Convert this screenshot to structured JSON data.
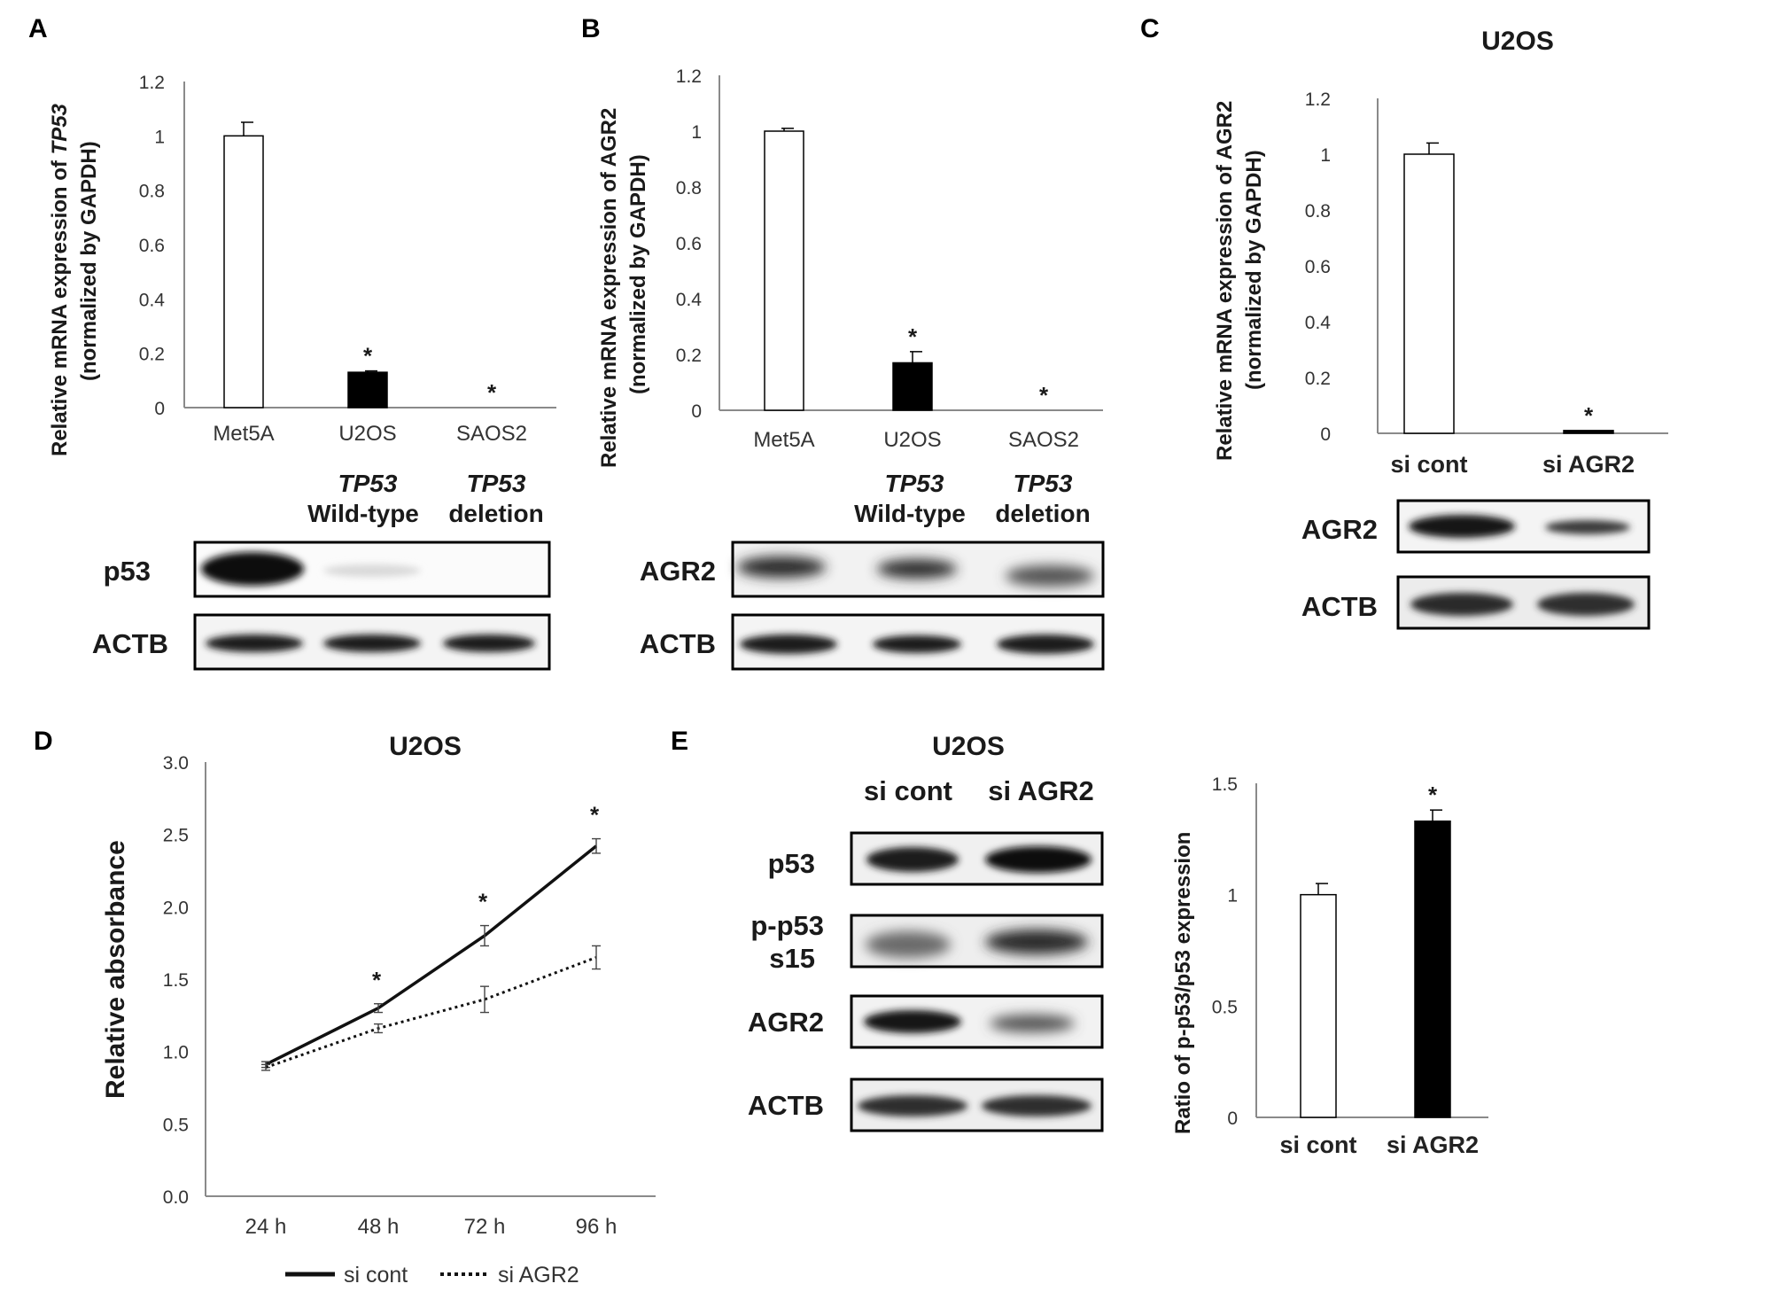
{
  "panels": {
    "A": {
      "label": "A",
      "ylabel_pre": "Relative mRNA expression of ",
      "ylabel_gene": "TP53",
      "ylabel_line2": "(normalized by GAPDH)",
      "genotype_gene": "TP53",
      "genotype_u2os": "Wild-type",
      "genotype_saos2": "deletion",
      "blot_rows": [
        "p53",
        "ACTB"
      ]
    },
    "B": {
      "label": "B",
      "ylabel_line1": "Relative mRNA expression of  AGR2",
      "ylabel_line2": "(normalized by GAPDH)",
      "genotype_gene": "TP53",
      "genotype_u2os": "Wild-type",
      "genotype_saos2": "deletion",
      "blot_rows": [
        "AGR2",
        "ACTB"
      ]
    },
    "C": {
      "label": "C",
      "title": "U2OS",
      "ylabel_line1": "Relative mRNA expression of  AGR2",
      "ylabel_line2": "(normalized by GAPDH)",
      "blot_rows": [
        "AGR2",
        "ACTB"
      ]
    },
    "D": {
      "label": "D",
      "title": "U2OS",
      "ylabel": "Relative absorbance",
      "legend": [
        "si cont",
        "si AGR2"
      ]
    },
    "E": {
      "label": "E",
      "title": "U2OS",
      "blot_columns": [
        "si cont",
        "si AGR2"
      ],
      "blot_rows": [
        "p53",
        "p-p53",
        "s15",
        "AGR2",
        "ACTB"
      ],
      "ylabel": "Ratio of p-p53/p53 expression"
    }
  },
  "chart_data": [
    {
      "id": "A",
      "type": "bar",
      "categories": [
        "Met5A",
        "U2OS",
        "SAOS2"
      ],
      "values": [
        1.0,
        0.13,
        0.0
      ],
      "errors": [
        0.05,
        0.005,
        0.0
      ],
      "significance": [
        "",
        "*",
        "*"
      ],
      "ylim": [
        0,
        1.2
      ],
      "yticks": [
        "0",
        "0.2",
        "0.4",
        "0.6",
        "0.8",
        "1",
        "1.2"
      ],
      "bar_colors": [
        "#ffffff",
        "#000000",
        "#000000"
      ]
    },
    {
      "id": "B",
      "type": "bar",
      "categories": [
        "Met5A",
        "U2OS",
        "SAOS2"
      ],
      "values": [
        1.0,
        0.17,
        0.0
      ],
      "errors": [
        0.01,
        0.04,
        0.0
      ],
      "significance": [
        "",
        "*",
        "*"
      ],
      "ylim": [
        0,
        1.2
      ],
      "yticks": [
        "0",
        "0.2",
        "0.4",
        "0.6",
        "0.8",
        "1",
        "1.2"
      ],
      "bar_colors": [
        "#ffffff",
        "#000000",
        "#000000"
      ]
    },
    {
      "id": "C",
      "type": "bar",
      "categories": [
        "si cont",
        "si AGR2"
      ],
      "values": [
        1.0,
        0.01
      ],
      "errors": [
        0.04,
        0.0
      ],
      "significance": [
        "",
        "*"
      ],
      "ylim": [
        0,
        1.2
      ],
      "yticks": [
        "0",
        "0.2",
        "0.4",
        "0.6",
        "0.8",
        "1",
        "1.2"
      ],
      "bar_colors": [
        "#ffffff",
        "#000000"
      ]
    },
    {
      "id": "D",
      "type": "line",
      "categories": [
        "24 h",
        "48 h",
        "72 h",
        "96  h"
      ],
      "series": [
        {
          "name": "si cont",
          "values": [
            0.91,
            1.3,
            1.8,
            2.42
          ],
          "errors": [
            0.02,
            0.03,
            0.07,
            0.05
          ],
          "style": "solid"
        },
        {
          "name": "si AGR2",
          "values": [
            0.89,
            1.16,
            1.36,
            1.65
          ],
          "errors": [
            0.02,
            0.03,
            0.09,
            0.08
          ],
          "style": "dotted"
        }
      ],
      "significance": [
        "",
        "*",
        "*",
        "*"
      ],
      "ylim": [
        0,
        3.0
      ],
      "yticks": [
        "0.0",
        "0.5",
        "1.0",
        "1.5",
        "2.0",
        "2.5",
        "3.0"
      ]
    },
    {
      "id": "E",
      "type": "bar",
      "categories": [
        "si cont",
        "si AGR2"
      ],
      "values": [
        1.0,
        1.33
      ],
      "errors": [
        0.05,
        0.05
      ],
      "significance": [
        "",
        "*"
      ],
      "ylim": [
        0,
        1.5
      ],
      "yticks": [
        "0",
        "0.5",
        "1",
        "1.5"
      ],
      "bar_colors": [
        "#ffffff",
        "#000000"
      ]
    }
  ]
}
